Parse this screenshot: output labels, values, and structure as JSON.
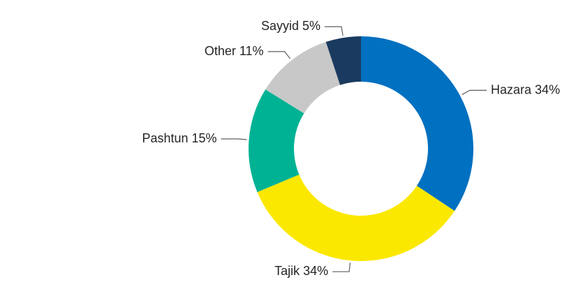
{
  "chart_data": {
    "type": "donut",
    "categories": [
      "Hazara",
      "Tajik",
      "Pashtun",
      "Other",
      "Sayyid"
    ],
    "values": [
      34,
      34,
      15,
      11,
      5
    ],
    "value_labels": [
      "34%",
      "34%",
      "15%",
      "11%",
      "5%"
    ],
    "colors": [
      "#0070c0",
      "#fbe800",
      "#00b294",
      "#c8c8c8",
      "#1a3a5f"
    ]
  }
}
